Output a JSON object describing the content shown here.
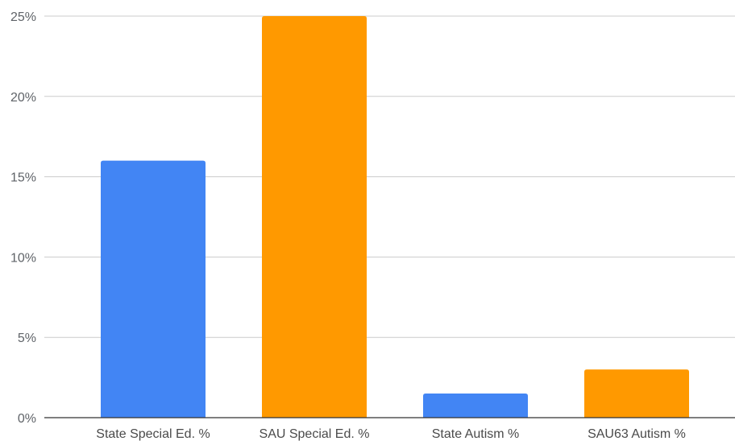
{
  "chart_data": {
    "type": "bar",
    "categories": [
      "State Special Ed. %",
      "SAU Special Ed. %",
      "State Autism %",
      "SAU63 Autism %"
    ],
    "values": [
      16,
      25,
      1.5,
      3
    ],
    "y_unit": "%",
    "ylim": [
      0,
      25
    ],
    "y_ticks": [
      0,
      5,
      10,
      15,
      20,
      25
    ],
    "y_tick_labels": [
      "0%",
      "5%",
      "10%",
      "15%",
      "20%",
      "25%"
    ],
    "title": "",
    "xlabel": "",
    "ylabel": "",
    "grid": true,
    "legend": "none",
    "bar_colors": [
      "#4285f4",
      "#ff9900",
      "#4285f4",
      "#ff9900"
    ]
  }
}
